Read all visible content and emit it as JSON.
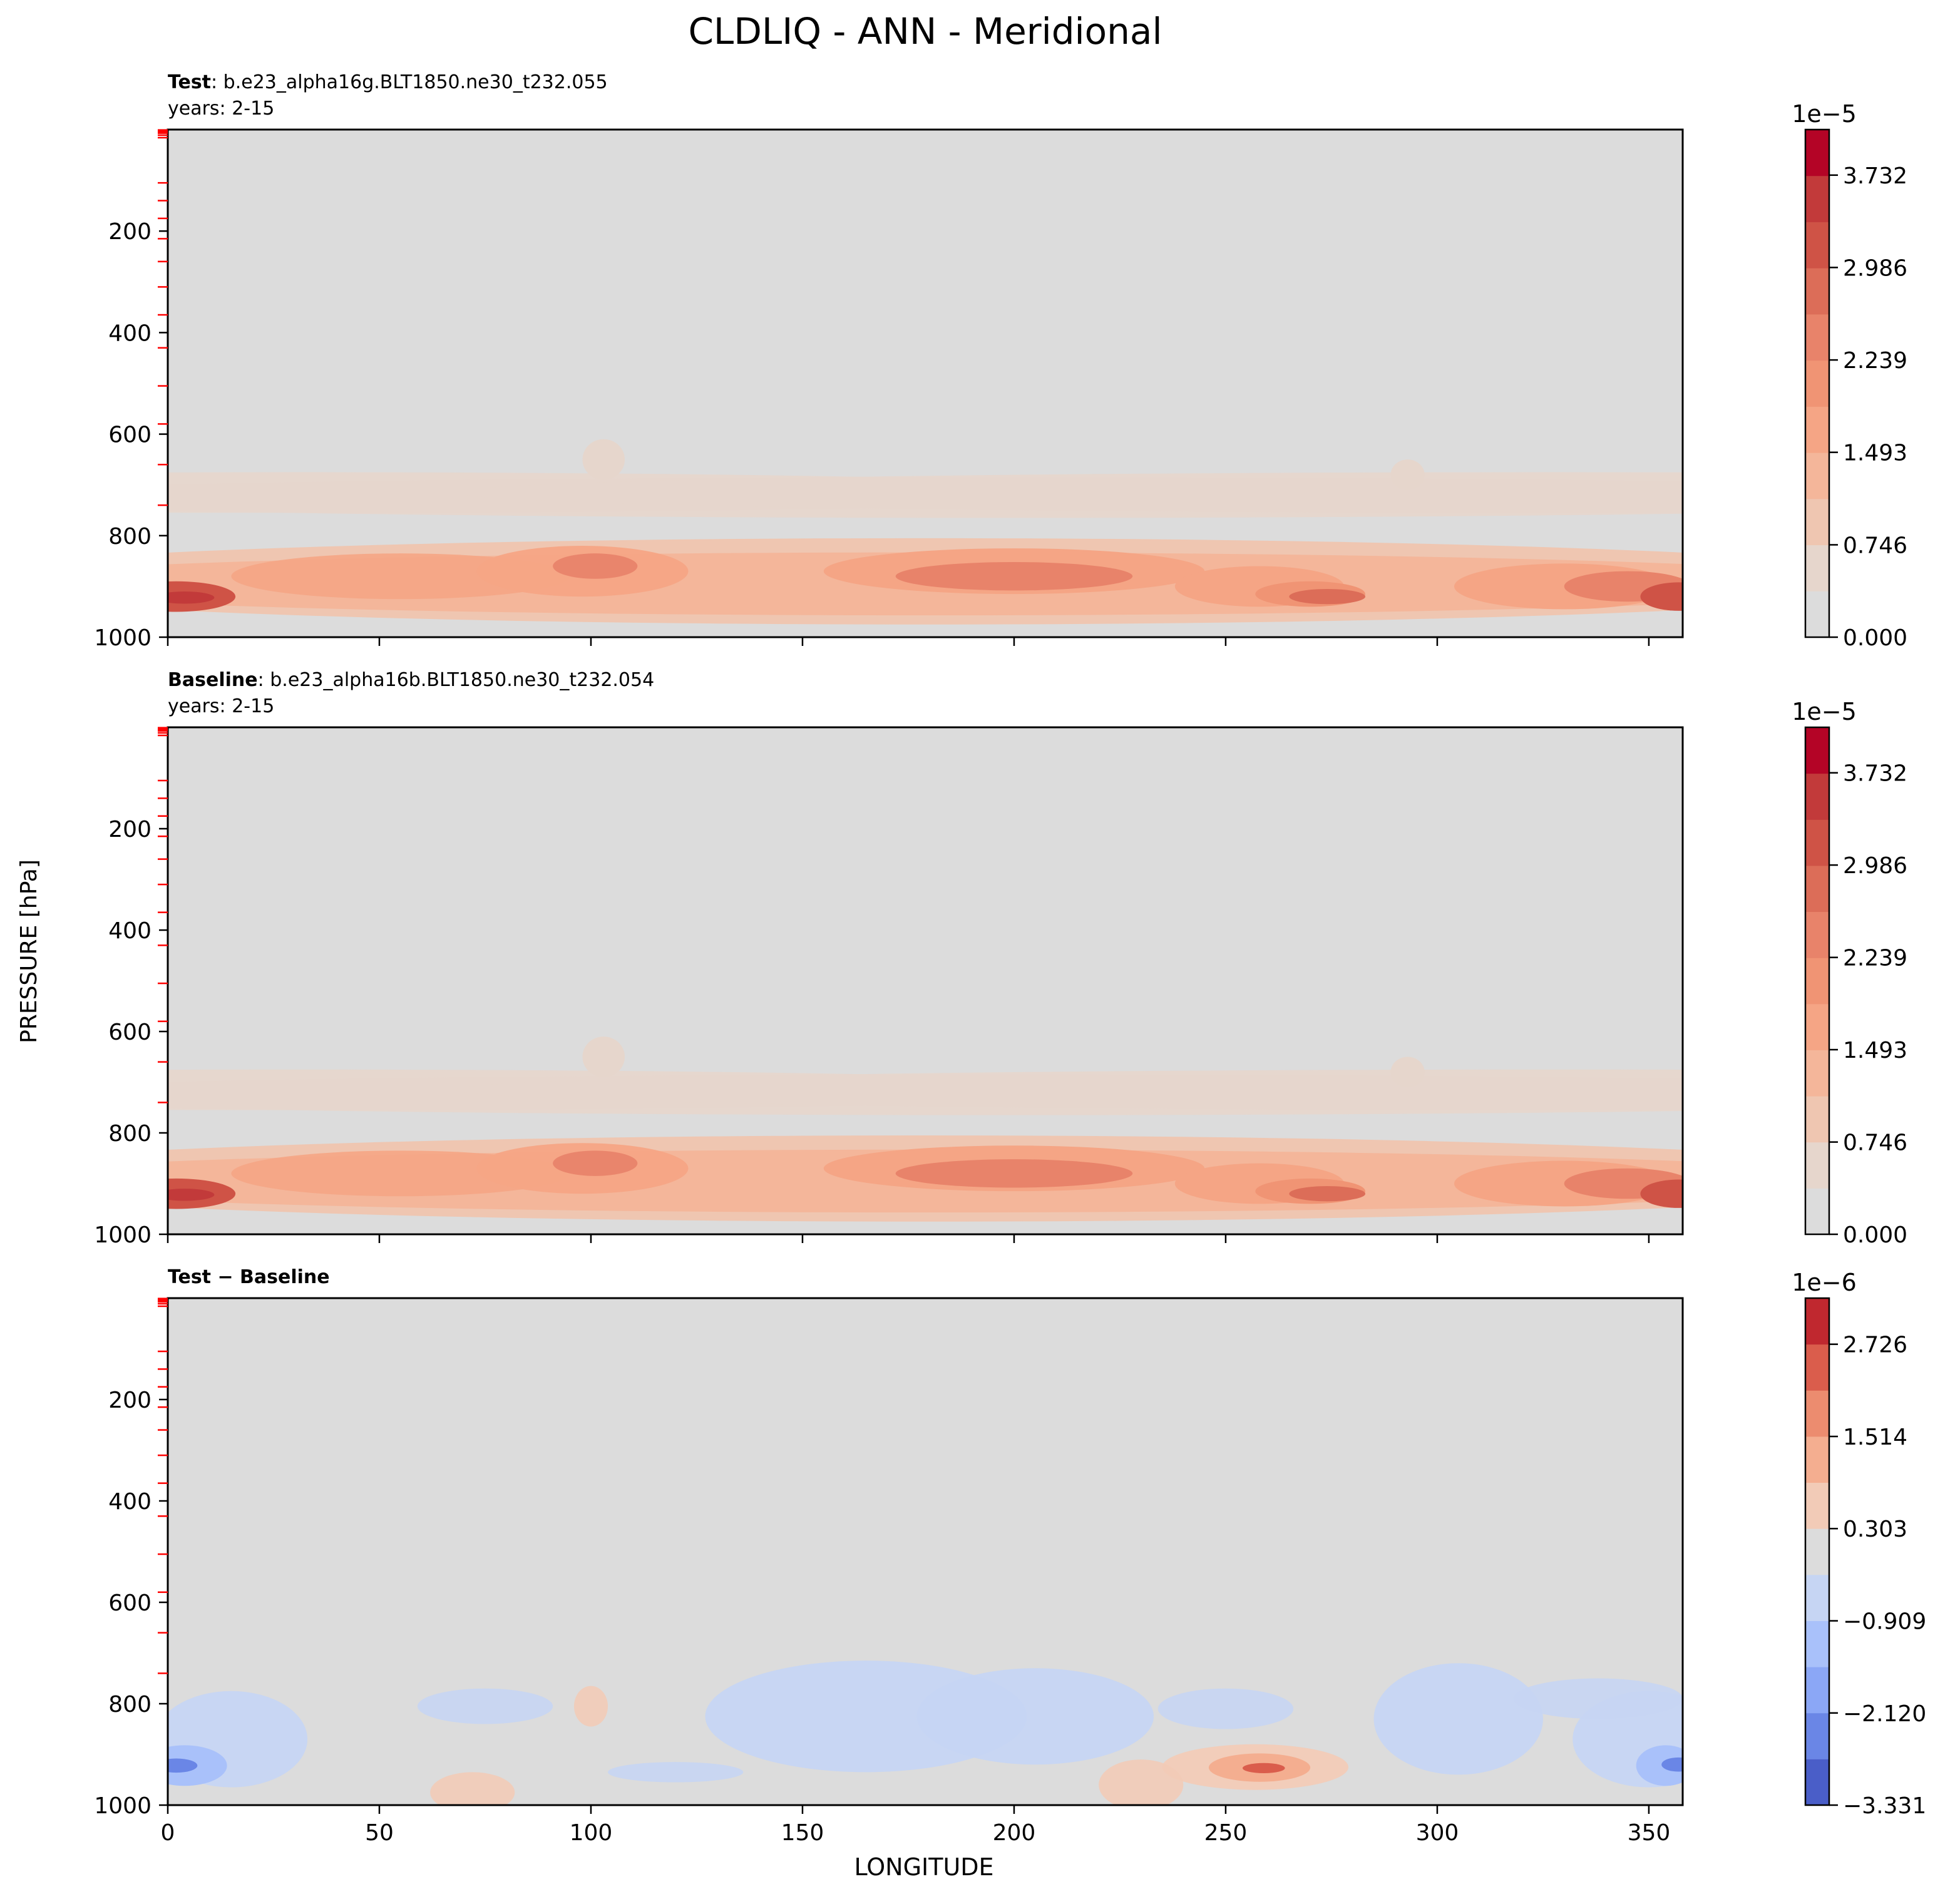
{
  "figure": {
    "title": "CLDLIQ - ANN - Meridional",
    "ylabel": "PRESSURE [hPa]",
    "xlabel": "LONGITUDE"
  },
  "chart_data": [
    {
      "type": "heatmap",
      "panel": "test",
      "label_bold": "Test",
      "label_rest": ": b.e23_alpha16g.BLT1850.ne30_t232.055",
      "subtitle": "years: 2-15",
      "xlim": [
        0,
        358
      ],
      "ylim": [
        1000,
        0
      ],
      "yticks": [
        "200",
        "400",
        "600",
        "800",
        "1000"
      ],
      "ytick_values": [
        200,
        400,
        600,
        800,
        1000
      ],
      "xtick_values": [
        0,
        50,
        100,
        150,
        200,
        250,
        300,
        350
      ],
      "colorbar": {
        "exponent": "1e−5",
        "tick_labels": [
          "3.732",
          "2.986",
          "2.239",
          "1.493",
          "0.746",
          "0.000"
        ],
        "tick_values": [
          3.732,
          2.986,
          2.239,
          1.493,
          0.746,
          0.0
        ],
        "range": [
          0.0,
          4.1
        ],
        "colors": [
          "#dcdcdc",
          "#e6d6cc",
          "#efc6b1",
          "#f4b69a",
          "#f5a585",
          "#f09474",
          "#e8836a",
          "#dc6d58",
          "#cf5346",
          "#c23a3a",
          "#b40426"
        ]
      }
    },
    {
      "type": "heatmap",
      "panel": "baseline",
      "label_bold": "Baseline",
      "label_rest": ": b.e23_alpha16b.BLT1850.ne30_t232.054",
      "subtitle": "years: 2-15",
      "xlim": [
        0,
        358
      ],
      "ylim": [
        1000,
        0
      ],
      "yticks": [
        "200",
        "400",
        "600",
        "800",
        "1000"
      ],
      "ytick_values": [
        200,
        400,
        600,
        800,
        1000
      ],
      "xtick_values": [
        0,
        50,
        100,
        150,
        200,
        250,
        300,
        350
      ],
      "colorbar": {
        "exponent": "1e−5",
        "tick_labels": [
          "3.732",
          "2.986",
          "2.239",
          "1.493",
          "0.746",
          "0.000"
        ],
        "tick_values": [
          3.732,
          2.986,
          2.239,
          1.493,
          0.746,
          0.0
        ],
        "range": [
          0.0,
          4.1
        ],
        "colors": [
          "#dcdcdc",
          "#e6d6cc",
          "#efc6b1",
          "#f4b69a",
          "#f5a585",
          "#f09474",
          "#e8836a",
          "#dc6d58",
          "#cf5346",
          "#c23a3a",
          "#b40426"
        ]
      }
    },
    {
      "type": "heatmap",
      "panel": "difference",
      "label_bold": "Test − Baseline",
      "label_rest": "",
      "subtitle": "",
      "xlim": [
        0,
        358
      ],
      "ylim": [
        1000,
        0
      ],
      "yticks": [
        "200",
        "400",
        "600",
        "800",
        "1000"
      ],
      "ytick_values": [
        200,
        400,
        600,
        800,
        1000
      ],
      "xticks": [
        "0",
        "50",
        "100",
        "150",
        "200",
        "250",
        "300",
        "350"
      ],
      "xtick_values": [
        0,
        50,
        100,
        150,
        200,
        250,
        300,
        350
      ],
      "colorbar": {
        "exponent": "1e−6",
        "tick_labels": [
          "2.726",
          "1.514",
          "0.303",
          "−0.909",
          "−2.120",
          "−3.331"
        ],
        "tick_values": [
          2.726,
          1.514,
          0.303,
          -0.909,
          -2.12,
          -3.331
        ],
        "range": [
          -3.331,
          3.332
        ],
        "colors": [
          "#4a5ec8",
          "#6a86e6",
          "#8ba7f6",
          "#a9c1fa",
          "#c6d5f3",
          "#dcdcdc",
          "#f2cbb7",
          "#f4ae90",
          "#ec8c6f",
          "#da5d4c",
          "#c0282f"
        ]
      }
    }
  ]
}
